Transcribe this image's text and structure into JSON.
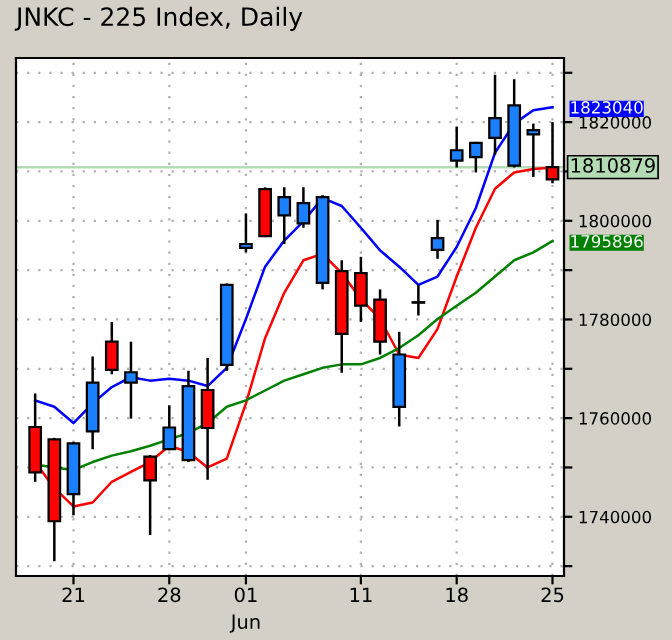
{
  "chart_data": {
    "type": "candlestick",
    "title": "JNKC - 225 Index, Daily",
    "categories": [
      null,
      null,
      "21",
      null,
      null,
      null,
      null,
      "28",
      null,
      null,
      null,
      "01",
      null,
      null,
      null,
      null,
      null,
      "11",
      null,
      null,
      null,
      null,
      "18",
      null,
      null,
      null,
      null,
      "25"
    ],
    "ohlc": [
      [
        1749000,
        1765000,
        1747100,
        1758200
      ],
      [
        1739100,
        1756000,
        1731000,
        1755700
      ],
      [
        1754900,
        1755200,
        1740300,
        1744600
      ],
      [
        1767200,
        1772500,
        1753700,
        1757300
      ],
      [
        1769800,
        1779500,
        1768900,
        1775500
      ],
      [
        1769300,
        1775500,
        1759900,
        1767200
      ],
      [
        1747400,
        1752500,
        1736300,
        1752200
      ],
      [
        1758100,
        1762600,
        1753500,
        1753700
      ],
      [
        1766500,
        1769600,
        1751100,
        1751500
      ],
      [
        1758000,
        1772200,
        1747500,
        1765700
      ],
      [
        1787000,
        1787300,
        1769600,
        1770800
      ],
      [
        1795300,
        1801500,
        1793600,
        1794500
      ],
      [
        1796900,
        1806800,
        1796700,
        1806400
      ],
      [
        1804800,
        1806800,
        1795300,
        1801100
      ],
      [
        1803600,
        1806800,
        1798600,
        1799500
      ],
      [
        1804800,
        1805200,
        1786100,
        1787400
      ],
      [
        1777100,
        1792000,
        1769200,
        1789800
      ],
      [
        1782800,
        1792700,
        1779500,
        1789400
      ],
      [
        1775500,
        1786100,
        1772900,
        1784000
      ],
      [
        1772900,
        1777500,
        1758300,
        1762300
      ],
      [
        1783500,
        1787000,
        1780800,
        1783400
      ],
      [
        1796500,
        1800200,
        1792300,
        1794100
      ],
      [
        1814300,
        1819100,
        1810800,
        1812200
      ],
      [
        1815800,
        1816000,
        1809800,
        1812900
      ],
      [
        1820800,
        1829600,
        1813400,
        1816800
      ],
      [
        1823400,
        1828700,
        1810800,
        1811200
      ],
      [
        1818400,
        1819700,
        1808900,
        1817500
      ],
      [
        1808400,
        1820000,
        1807600,
        1810879
      ]
    ],
    "colors": [
      "#ff0000",
      "#ff0000",
      "#1a80ff",
      "#1a80ff",
      "#ff0000",
      "#1a80ff",
      "#ff0000",
      "#1a80ff",
      "#1a80ff",
      "#ff0000",
      "#1a80ff",
      "#1a80ff",
      "#ff0000",
      "#1a80ff",
      "#1a80ff",
      "#1a80ff",
      "#ff0000",
      "#ff0000",
      "#ff0000",
      "#1a80ff",
      "#1a80ff",
      "#1a80ff",
      "#1a80ff",
      "#1a80ff",
      "#1a80ff",
      "#1a80ff",
      "#1a80ff",
      "#ff0000"
    ],
    "series": [
      {
        "type": "line",
        "color": "#0000ff",
        "value_labels": [
          null,
          null,
          null,
          null,
          null,
          null,
          null,
          null,
          null,
          null,
          null,
          null,
          null,
          null,
          null,
          null,
          null,
          null,
          null,
          null,
          null,
          null,
          null,
          null,
          null,
          null,
          null,
          "1823040"
        ],
        "values": [
          1763600,
          1762300,
          1759000,
          1763000,
          1766300,
          1768300,
          1767600,
          1768000,
          1767600,
          1766500,
          1770200,
          1780100,
          1790700,
          1796000,
          1799900,
          1804600,
          1803000,
          1798600,
          1794000,
          1790700,
          1787000,
          1788700,
          1794700,
          1802600,
          1813800,
          1819700,
          1822400,
          1823040
        ]
      },
      {
        "type": "line",
        "color": "#ff0000",
        "values": [
          1751100,
          1745800,
          1742100,
          1742900,
          1747100,
          1749100,
          1751100,
          1754400,
          1753100,
          1750000,
          1751800,
          1763000,
          1776200,
          1785400,
          1792000,
          1793300,
          1789400,
          1784100,
          1780100,
          1772900,
          1772200,
          1778100,
          1788700,
          1798600,
          1806500,
          1809800,
          1810500,
          1810800
        ]
      },
      {
        "type": "line",
        "color": "#008000",
        "value_labels": [
          null,
          null,
          null,
          null,
          null,
          null,
          null,
          null,
          null,
          null,
          null,
          null,
          null,
          null,
          null,
          null,
          null,
          null,
          null,
          null,
          null,
          null,
          null,
          null,
          null,
          null,
          null,
          "1795896"
        ],
        "values": [
          1750600,
          1750000,
          1749500,
          1751100,
          1752400,
          1753300,
          1754400,
          1755700,
          1757000,
          1759000,
          1762300,
          1763600,
          1765600,
          1767600,
          1768900,
          1770200,
          1770900,
          1770900,
          1772200,
          1774200,
          1776800,
          1780100,
          1782800,
          1785400,
          1788700,
          1792000,
          1793600,
          1795896
        ]
      }
    ],
    "ylim": [
      1728000,
      1833000
    ],
    "yticks": [
      {
        "value": 1730000,
        "label": null
      },
      1740000,
      {
        "value": 1750000,
        "label": null
      },
      1760000,
      {
        "value": 1770000,
        "label": null
      },
      1780000,
      {
        "value": 1790000,
        "label": null
      },
      1800000,
      {
        "value": 1810000,
        "label": null
      },
      1820000,
      {
        "value": 1830000,
        "label": null
      }
    ],
    "ref_lines": [
      {
        "axis": "y",
        "value": 1810879,
        "label": "1810879",
        "color": "#b4dcb4"
      }
    ],
    "annotations": [
      "Jun"
    ],
    "grid": true
  }
}
